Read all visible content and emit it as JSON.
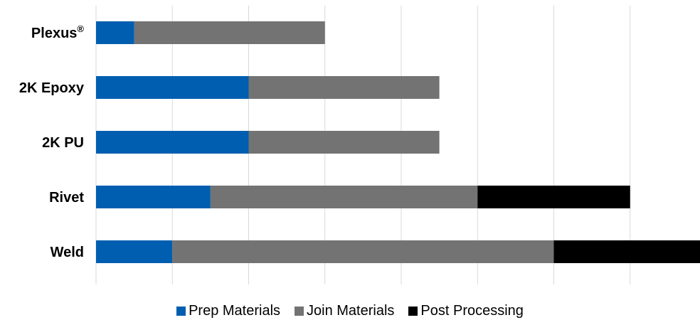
{
  "chart_data": {
    "type": "bar",
    "orientation": "horizontal",
    "stacked": true,
    "categories": [
      "Plexus®",
      "2K Epoxy",
      "2K PU",
      "Rivet",
      "Weld"
    ],
    "series": [
      {
        "name": "Prep Materials",
        "color": "#005eb0",
        "values": [
          0.5,
          2.0,
          2.0,
          1.5,
          1.0
        ]
      },
      {
        "name": "Join Materials",
        "color": "#737373",
        "values": [
          2.5,
          2.5,
          2.5,
          3.5,
          5.0
        ]
      },
      {
        "name": "Post Processing",
        "color": "#000000",
        "values": [
          0,
          0,
          0,
          2.0,
          2.0
        ]
      }
    ],
    "xlim": [
      0,
      8
    ],
    "grid": true,
    "legend_position": "bottom"
  }
}
